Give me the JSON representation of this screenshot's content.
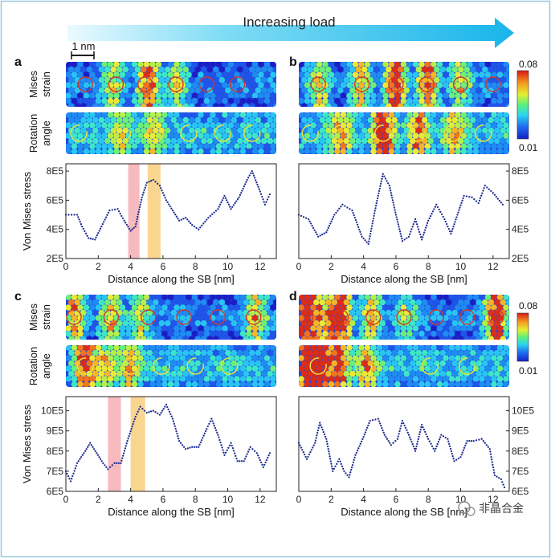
{
  "header": {
    "label": "Increasing load"
  },
  "scale_bar": "1 nm",
  "colorbar": {
    "max": "0.08",
    "min": "0.01"
  },
  "rows": {
    "strain": [
      "Mises",
      "strain"
    ],
    "rotation": [
      "Rotation",
      "angle"
    ]
  },
  "watermark": "非晶合金",
  "chart_data": [
    {
      "panel": "a",
      "type": "scatter",
      "xlabel": "Distance along the SB [nm]",
      "ylabel": "Von Mises stress",
      "xlim": [
        0,
        13
      ],
      "ylim": [
        2,
        8.5
      ],
      "xticks": [
        "0",
        "2",
        "4",
        "6",
        "8",
        "10",
        "12"
      ],
      "yticks": [
        "2E5",
        "4E5",
        "6E5",
        "8E5"
      ],
      "y_axis_side": "left",
      "bands": [
        {
          "color": "#f4a3a8",
          "x": [
            3.85,
            4.55
          ]
        },
        {
          "color": "#f7c86b",
          "x": [
            5.05,
            5.85
          ]
        }
      ],
      "keypoints": [
        [
          0,
          5.0
        ],
        [
          0.7,
          5.0
        ],
        [
          1.0,
          4.2
        ],
        [
          1.4,
          3.4
        ],
        [
          1.8,
          3.3
        ],
        [
          2.2,
          4.2
        ],
        [
          2.7,
          5.3
        ],
        [
          3.2,
          5.4
        ],
        [
          3.6,
          4.6
        ],
        [
          4.0,
          3.9
        ],
        [
          4.3,
          4.2
        ],
        [
          4.7,
          6.2
        ],
        [
          5.0,
          7.2
        ],
        [
          5.4,
          7.4
        ],
        [
          5.8,
          7.0
        ],
        [
          6.2,
          6.0
        ],
        [
          6.6,
          5.3
        ],
        [
          7.0,
          4.6
        ],
        [
          7.4,
          4.8
        ],
        [
          7.8,
          4.3
        ],
        [
          8.2,
          4.0
        ],
        [
          8.8,
          4.8
        ],
        [
          9.4,
          5.4
        ],
        [
          9.8,
          6.3
        ],
        [
          10.2,
          5.4
        ],
        [
          10.7,
          6.2
        ],
        [
          11.2,
          7.4
        ],
        [
          11.5,
          8.0
        ],
        [
          12.0,
          6.6
        ],
        [
          12.3,
          5.7
        ],
        [
          12.6,
          6.4
        ]
      ]
    },
    {
      "panel": "b",
      "type": "scatter",
      "xlabel": "Distance along the SB [nm]",
      "ylabel": "",
      "xlim": [
        0,
        13
      ],
      "ylim": [
        2,
        8.5
      ],
      "xticks": [
        "0",
        "2",
        "4",
        "6",
        "8",
        "10",
        "12"
      ],
      "yticks": [
        "2E5",
        "4E5",
        "6E5",
        "8E5"
      ],
      "y_axis_side": "right",
      "bands": [],
      "keypoints": [
        [
          0,
          5.0
        ],
        [
          0.6,
          4.7
        ],
        [
          1.2,
          3.5
        ],
        [
          1.7,
          3.8
        ],
        [
          2.2,
          5.0
        ],
        [
          2.7,
          5.7
        ],
        [
          3.3,
          5.3
        ],
        [
          3.9,
          3.5
        ],
        [
          4.3,
          3.0
        ],
        [
          4.8,
          5.8
        ],
        [
          5.2,
          7.8
        ],
        [
          5.6,
          7.0
        ],
        [
          6.0,
          5.0
        ],
        [
          6.4,
          3.2
        ],
        [
          6.8,
          3.5
        ],
        [
          7.2,
          4.7
        ],
        [
          7.6,
          3.3
        ],
        [
          8.0,
          4.6
        ],
        [
          8.5,
          5.7
        ],
        [
          9.0,
          4.7
        ],
        [
          9.4,
          3.7
        ],
        [
          9.8,
          5.0
        ],
        [
          10.2,
          6.3
        ],
        [
          10.7,
          6.2
        ],
        [
          11.1,
          5.8
        ],
        [
          11.5,
          7.0
        ],
        [
          12.0,
          6.5
        ],
        [
          12.6,
          5.7
        ]
      ]
    },
    {
      "panel": "c",
      "type": "scatter",
      "xlabel": "Distance along the SB [nm]",
      "ylabel": "Von Mises stress",
      "xlim": [
        0,
        13
      ],
      "ylim": [
        6,
        10.7
      ],
      "xticks": [
        "0",
        "2",
        "4",
        "6",
        "8",
        "10",
        "12"
      ],
      "yticks": [
        "6E5",
        "7E5",
        "8E5",
        "9E5",
        "10E5"
      ],
      "y_axis_side": "left",
      "bands": [
        {
          "color": "#f4a3a8",
          "x": [
            2.6,
            3.4
          ]
        },
        {
          "color": "#f7c86b",
          "x": [
            4.0,
            4.9
          ]
        }
      ],
      "keypoints": [
        [
          0,
          7.0
        ],
        [
          0.3,
          6.5
        ],
        [
          0.7,
          7.4
        ],
        [
          1.2,
          8.0
        ],
        [
          1.5,
          8.4
        ],
        [
          1.9,
          7.9
        ],
        [
          2.3,
          7.4
        ],
        [
          2.6,
          7.1
        ],
        [
          3.0,
          7.4
        ],
        [
          3.4,
          7.4
        ],
        [
          3.8,
          8.5
        ],
        [
          4.3,
          9.7
        ],
        [
          4.6,
          10.2
        ],
        [
          5.0,
          9.9
        ],
        [
          5.4,
          10.0
        ],
        [
          5.8,
          9.8
        ],
        [
          6.2,
          10.3
        ],
        [
          6.6,
          9.6
        ],
        [
          7.0,
          8.5
        ],
        [
          7.4,
          8.1
        ],
        [
          7.8,
          8.2
        ],
        [
          8.2,
          8.2
        ],
        [
          8.7,
          9.1
        ],
        [
          9.0,
          9.6
        ],
        [
          9.4,
          8.8
        ],
        [
          9.8,
          7.8
        ],
        [
          10.2,
          8.4
        ],
        [
          10.6,
          7.5
        ],
        [
          11.0,
          7.5
        ],
        [
          11.4,
          8.2
        ],
        [
          11.8,
          7.9
        ],
        [
          12.2,
          7.2
        ],
        [
          12.6,
          7.9
        ]
      ]
    },
    {
      "panel": "d",
      "type": "scatter",
      "xlabel": "Distance along the SB [nm]",
      "ylabel": "",
      "xlim": [
        0,
        13
      ],
      "ylim": [
        6,
        10.7
      ],
      "xticks": [
        "0",
        "2",
        "4",
        "6",
        "8",
        "10",
        "12"
      ],
      "yticks": [
        "6E5",
        "7E5",
        "8E5",
        "9E5",
        "10E5"
      ],
      "y_axis_side": "right",
      "bands": [],
      "keypoints": [
        [
          0,
          8.4
        ],
        [
          0.5,
          7.6
        ],
        [
          1.0,
          8.4
        ],
        [
          1.3,
          9.4
        ],
        [
          1.7,
          8.6
        ],
        [
          2.1,
          7.0
        ],
        [
          2.5,
          7.6
        ],
        [
          2.8,
          7.0
        ],
        [
          3.1,
          6.7
        ],
        [
          3.5,
          7.8
        ],
        [
          4.0,
          8.7
        ],
        [
          4.4,
          9.5
        ],
        [
          4.9,
          9.6
        ],
        [
          5.3,
          8.8
        ],
        [
          5.7,
          8.3
        ],
        [
          6.1,
          8.6
        ],
        [
          6.4,
          9.5
        ],
        [
          6.8,
          8.8
        ],
        [
          7.2,
          8.0
        ],
        [
          7.6,
          9.3
        ],
        [
          8.0,
          8.6
        ],
        [
          8.4,
          8.0
        ],
        [
          8.8,
          8.8
        ],
        [
          9.2,
          8.6
        ],
        [
          9.6,
          7.5
        ],
        [
          10.0,
          7.7
        ],
        [
          10.4,
          8.5
        ],
        [
          10.8,
          8.5
        ],
        [
          11.3,
          8.6
        ],
        [
          11.8,
          8.1
        ],
        [
          12.1,
          6.8
        ],
        [
          12.5,
          6.6
        ],
        [
          12.7,
          6.2
        ]
      ]
    }
  ],
  "maps": [
    {
      "panel": "a",
      "strain_circles": [
        [
          1.2,
          "#d13a2a"
        ],
        [
          3.1,
          "#d13a2a"
        ],
        [
          4.9,
          "#d13a2a"
        ],
        [
          6.8,
          "#d13a2a"
        ],
        [
          8.7,
          "#d13a2a"
        ],
        [
          10.6,
          "#d13a2a"
        ]
      ],
      "rot_circles": [
        [
          0.8,
          "#e8e23a"
        ],
        [
          3.5,
          "#e8e23a"
        ],
        [
          5.5,
          "#e8e23a"
        ],
        [
          7.6,
          "#e8e23a"
        ],
        [
          9.7,
          "#e8e23a"
        ],
        [
          11.5,
          "#e8e23a"
        ]
      ],
      "strain_hot": [
        [
          2.9,
          0.5
        ],
        [
          5.1,
          0.85
        ],
        [
          6.9,
          0.45
        ]
      ],
      "rot_hot": [
        [
          5.4,
          0.4
        ],
        [
          3.4,
          0.35
        ]
      ]
    },
    {
      "panel": "b",
      "strain_circles": [
        [
          1.2,
          "#d13a2a"
        ],
        [
          3.9,
          "#d13a2a"
        ],
        [
          6.0,
          "#d13a2a"
        ],
        [
          7.9,
          "#d13a2a"
        ],
        [
          10.0,
          "#d13a2a"
        ],
        [
          12.0,
          "#d13a2a"
        ]
      ],
      "rot_circles": [
        [
          0.7,
          "#e8e23a"
        ],
        [
          2.6,
          "#e8e23a"
        ],
        [
          5.2,
          "#e8e23a"
        ],
        [
          7.3,
          "#e8e23a"
        ],
        [
          9.5,
          "#e8e23a"
        ],
        [
          11.4,
          "#e8e23a"
        ]
      ],
      "strain_hot": [
        [
          6.0,
          1.0
        ],
        [
          8.0,
          0.8
        ],
        [
          3.8,
          0.6
        ],
        [
          10.0,
          0.5
        ],
        [
          1.3,
          0.55
        ]
      ],
      "rot_hot": [
        [
          5.2,
          0.9
        ],
        [
          7.4,
          0.6
        ],
        [
          2.6,
          0.55
        ],
        [
          9.6,
          0.5
        ]
      ]
    },
    {
      "panel": "c",
      "strain_circles": [
        [
          0.5,
          "#d13a2a"
        ],
        [
          2.8,
          "#d13a2a"
        ],
        [
          5.1,
          "#d13a2a"
        ],
        [
          7.3,
          "#d13a2a"
        ],
        [
          9.4,
          "#d13a2a"
        ],
        [
          11.6,
          "#d13a2a"
        ]
      ],
      "rot_circles": [
        [
          1.2,
          "#e8e23a"
        ],
        [
          4.0,
          "#e8e23a"
        ],
        [
          5.9,
          "#e8e23a"
        ],
        [
          8.0,
          "#e8e23a"
        ],
        [
          10.1,
          "#e8e23a"
        ]
      ],
      "strain_hot": [
        [
          0.5,
          0.7
        ],
        [
          2.8,
          0.6
        ],
        [
          4.6,
          0.5
        ],
        [
          11.7,
          0.65
        ]
      ],
      "rot_hot": [
        [
          1.2,
          0.75
        ],
        [
          4.0,
          0.5
        ],
        [
          2.5,
          0.4
        ]
      ]
    },
    {
      "panel": "d",
      "strain_circles": [
        [
          0.4,
          "#d13a2a"
        ],
        [
          2.6,
          "#d13a2a"
        ],
        [
          4.6,
          "#d13a2a"
        ],
        [
          6.5,
          "#d13a2a"
        ],
        [
          8.5,
          "#d13a2a"
        ],
        [
          10.4,
          "#d13a2a"
        ],
        [
          12.2,
          "#d13a2a"
        ]
      ],
      "rot_circles": [
        [
          1.2,
          "#e8e23a"
        ],
        [
          4.0,
          "#e8e23a"
        ],
        [
          8.1,
          "#e8e23a"
        ],
        [
          10.4,
          "#e8e23a"
        ]
      ],
      "strain_hot": [
        [
          0.4,
          1.0
        ],
        [
          2.6,
          1.0
        ],
        [
          1.5,
          0.7
        ],
        [
          4.5,
          0.6
        ],
        [
          12.2,
          0.95
        ],
        [
          6.6,
          0.4
        ]
      ],
      "rot_hot": [
        [
          1.2,
          1.0
        ],
        [
          2.5,
          0.7
        ],
        [
          4.2,
          0.55
        ],
        [
          0.3,
          0.6
        ]
      ]
    }
  ]
}
